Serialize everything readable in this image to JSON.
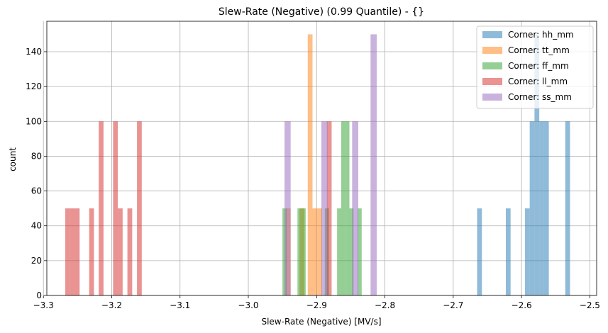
{
  "chart_data": {
    "type": "bar",
    "title": "Slew-Rate (Negative) (0.99 Quantile) - {}",
    "xlabel": "Slew-Rate (Negative) [MV/s]",
    "ylabel": "count",
    "xlim": [
      -3.295,
      -2.49
    ],
    "ylim": [
      0,
      157.5
    ],
    "xticks": [
      -3.3,
      -3.2,
      -3.1,
      -3.0,
      -2.9,
      -2.8,
      -2.7,
      -2.6,
      -2.5
    ],
    "xtick_labels": [
      "−3.3",
      "−3.2",
      "−3.1",
      "−3.0",
      "−2.9",
      "−2.8",
      "−2.7",
      "−2.6",
      "−2.5"
    ],
    "yticks": [
      0,
      20,
      40,
      60,
      80,
      100,
      120,
      140
    ],
    "grid": true,
    "legend_position": "top-right",
    "colors": {
      "hh_mm": "#1f77b4",
      "tt_mm": "#ff7f0e",
      "ff_mm": "#2ca02c",
      "ll_mm": "#d62728",
      "ss_mm": "#9467bd"
    },
    "bar_opacity": 0.5,
    "series": [
      {
        "name": "Corner: hh_mm",
        "color": "#1f77b4",
        "bins": [
          {
            "x0": -2.665,
            "x1": -2.658,
            "count": 50
          },
          {
            "x0": -2.623,
            "x1": -2.616,
            "count": 50
          },
          {
            "x0": -2.595,
            "x1": -2.588,
            "count": 50
          },
          {
            "x0": -2.588,
            "x1": -2.581,
            "count": 100
          },
          {
            "x0": -2.581,
            "x1": -2.574,
            "count": 150
          },
          {
            "x0": -2.574,
            "x1": -2.567,
            "count": 100
          },
          {
            "x0": -2.567,
            "x1": -2.56,
            "count": 100
          },
          {
            "x0": -2.536,
            "x1": -2.529,
            "count": 100
          }
        ]
      },
      {
        "name": "Corner: tt_mm",
        "color": "#ff7f0e",
        "bins": [
          {
            "x0": -2.945,
            "x1": -2.938,
            "count": 50
          },
          {
            "x0": -2.925,
            "x1": -2.918,
            "count": 50
          },
          {
            "x0": -2.913,
            "x1": -2.906,
            "count": 150
          },
          {
            "x0": -2.906,
            "x1": -2.899,
            "count": 50
          },
          {
            "x0": -2.899,
            "x1": -2.892,
            "count": 50
          }
        ]
      },
      {
        "name": "Corner: ff_mm",
        "color": "#2ca02c",
        "bins": [
          {
            "x0": -2.95,
            "x1": -2.944,
            "count": 50
          },
          {
            "x0": -2.928,
            "x1": -2.922,
            "count": 50
          },
          {
            "x0": -2.922,
            "x1": -2.916,
            "count": 50
          },
          {
            "x0": -2.888,
            "x1": -2.882,
            "count": 50
          },
          {
            "x0": -2.87,
            "x1": -2.864,
            "count": 50
          },
          {
            "x0": -2.864,
            "x1": -2.858,
            "count": 100
          },
          {
            "x0": -2.858,
            "x1": -2.852,
            "count": 100
          },
          {
            "x0": -2.852,
            "x1": -2.846,
            "count": 50
          },
          {
            "x0": -2.84,
            "x1": -2.834,
            "count": 50
          }
        ]
      },
      {
        "name": "Corner: ll_mm",
        "color": "#d62728",
        "bins": [
          {
            "x0": -3.268,
            "x1": -3.261,
            "count": 50
          },
          {
            "x0": -3.261,
            "x1": -3.254,
            "count": 50
          },
          {
            "x0": -3.254,
            "x1": -3.247,
            "count": 50
          },
          {
            "x0": -3.233,
            "x1": -3.226,
            "count": 50
          },
          {
            "x0": -3.219,
            "x1": -3.212,
            "count": 100
          },
          {
            "x0": -3.198,
            "x1": -3.191,
            "count": 100
          },
          {
            "x0": -3.191,
            "x1": -3.184,
            "count": 50
          },
          {
            "x0": -3.177,
            "x1": -3.17,
            "count": 50
          },
          {
            "x0": -3.163,
            "x1": -3.156,
            "count": 100
          },
          {
            "x0": -2.885,
            "x1": -2.878,
            "count": 100
          }
        ]
      },
      {
        "name": "Corner: ss_mm",
        "color": "#9467bd",
        "bins": [
          {
            "x0": -2.947,
            "x1": -2.938,
            "count": 100
          },
          {
            "x0": -2.893,
            "x1": -2.884,
            "count": 100
          },
          {
            "x0": -2.848,
            "x1": -2.839,
            "count": 100
          },
          {
            "x0": -2.821,
            "x1": -2.812,
            "count": 150
          }
        ]
      }
    ]
  }
}
